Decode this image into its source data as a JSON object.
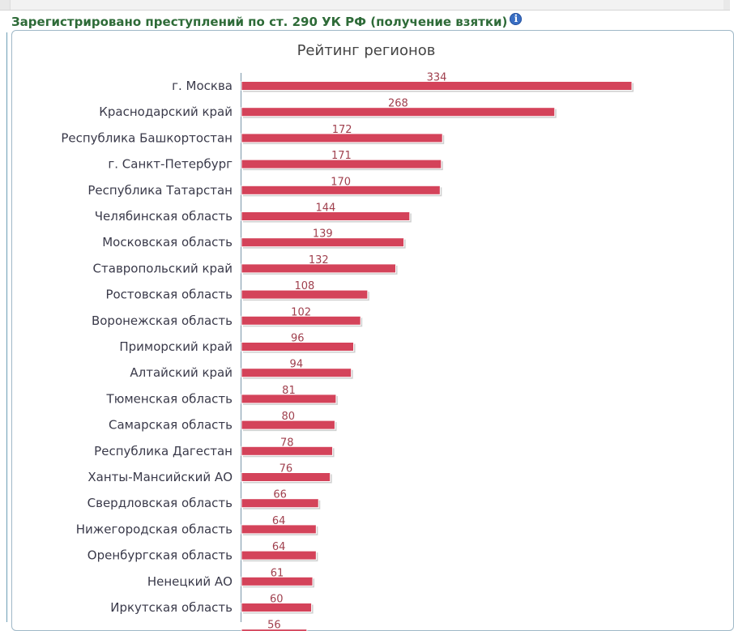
{
  "header": {
    "title": "Зарегистрировано преступлений по ст. 290 УК РФ (получение взятки)",
    "info_icon": "info-icon",
    "info_glyph": "i"
  },
  "colors": {
    "header_text": "#2e6b38",
    "bar": "#d4435a",
    "value_label": "#a0404e",
    "category_label": "#3a3a4a",
    "info_icon": "#3a6fc4"
  },
  "chart_data": {
    "type": "bar",
    "orientation": "horizontal",
    "title": "Рейтинг регионов",
    "categories": [
      "г. Москва",
      "Краснодарский край",
      "Республика Башкортостан",
      "г. Санкт-Петербург",
      "Республика Татарстан",
      "Челябинская область",
      "Московская область",
      "Ставропольский край",
      "Ростовская область",
      "Воронежская область",
      "Приморский край",
      "Алтайский край",
      "Тюменская область",
      "Самарская область",
      "Республика Дагестан",
      "Ханты-Мансийский АО",
      "Свердловская область",
      "Нижегородская область",
      "Оренбургская область",
      "Ненецкий АО",
      "Иркутская область",
      ""
    ],
    "values": [
      334,
      268,
      172,
      171,
      170,
      144,
      139,
      132,
      108,
      102,
      96,
      94,
      81,
      80,
      78,
      76,
      66,
      64,
      64,
      61,
      60,
      56
    ],
    "value_labels": [
      "334",
      "268",
      "172",
      "171",
      "170",
      "144",
      "139",
      "132",
      "108",
      "102",
      "96",
      "94",
      "81",
      "80",
      "78",
      "76",
      "66",
      "64",
      "64",
      "61",
      "60",
      "56"
    ],
    "xlim": [
      0,
      334
    ],
    "grid": false,
    "legend": "none"
  }
}
